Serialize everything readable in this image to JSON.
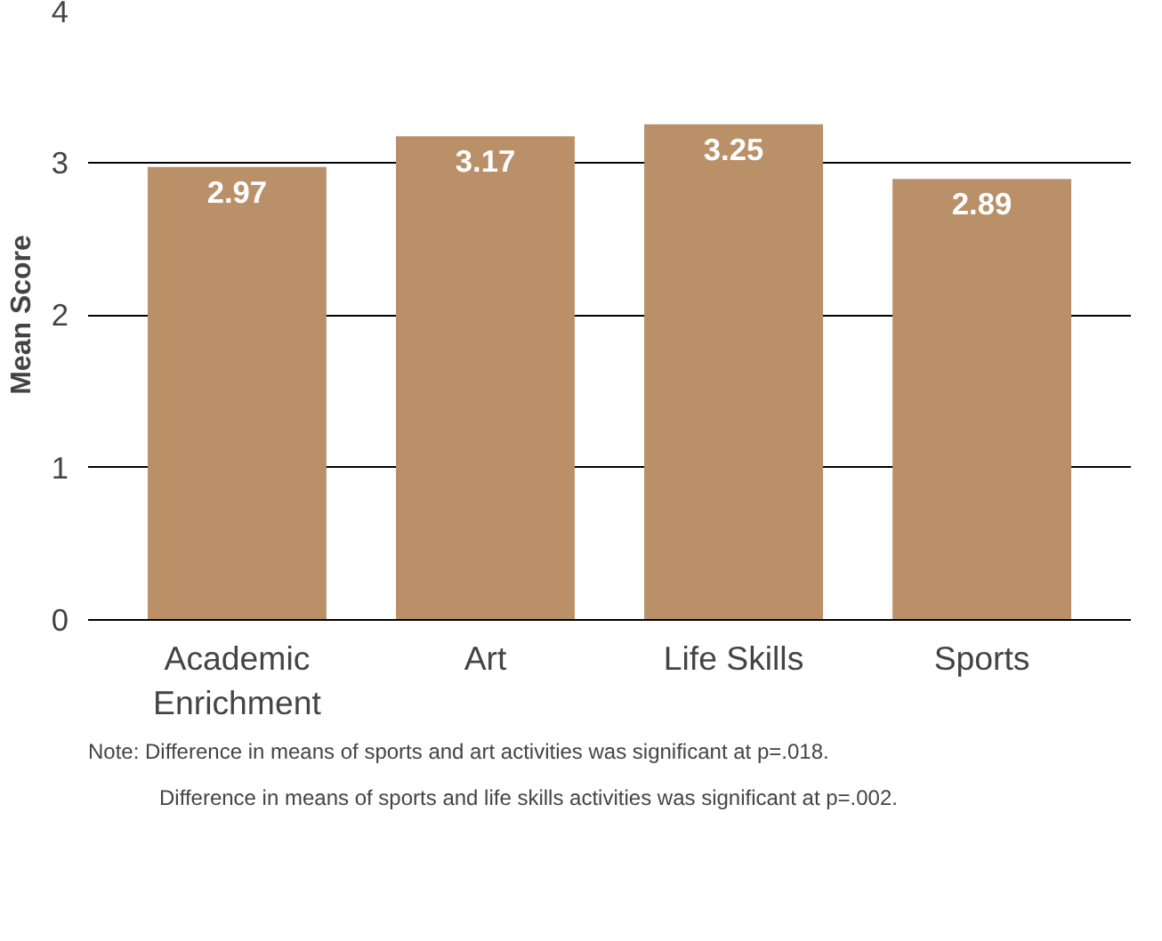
{
  "chart_data": {
    "type": "bar",
    "ylabel": "Mean Score",
    "categories": [
      "Academic Enrichment",
      "Art",
      "Life Skills",
      "Sports"
    ],
    "values": [
      2.97,
      3.17,
      3.25,
      2.89
    ],
    "color": "#b99068",
    "ylim": [
      0,
      4
    ],
    "yticks": [
      0,
      1,
      2,
      3,
      4
    ],
    "grid": "y",
    "data_labels": true,
    "annotations": [
      "Note:  Difference in means of sports and art activities was significant at p=.018.",
      "Difference in means of sports and life skills activities was significant at p=.002."
    ]
  }
}
